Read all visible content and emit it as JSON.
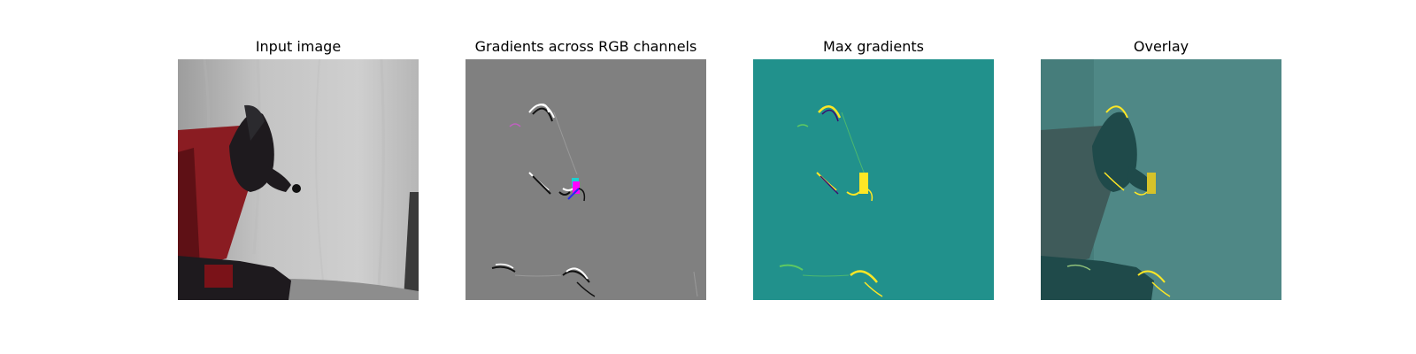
{
  "panels": [
    {
      "title": "Input image"
    },
    {
      "title": "Gradients across RGB channels"
    },
    {
      "title": "Max gradients"
    },
    {
      "title": "Overlay"
    }
  ],
  "colors": {
    "gradient_gray": "#808080",
    "max_gradients_teal": "#21918c",
    "highlight_yellow": "#fde725",
    "overlay_teal": "#4f8886",
    "robot_red": "#8a1c22",
    "robot_dark": "#1e1a1e",
    "backdrop_gray": "#c8c8c8"
  }
}
